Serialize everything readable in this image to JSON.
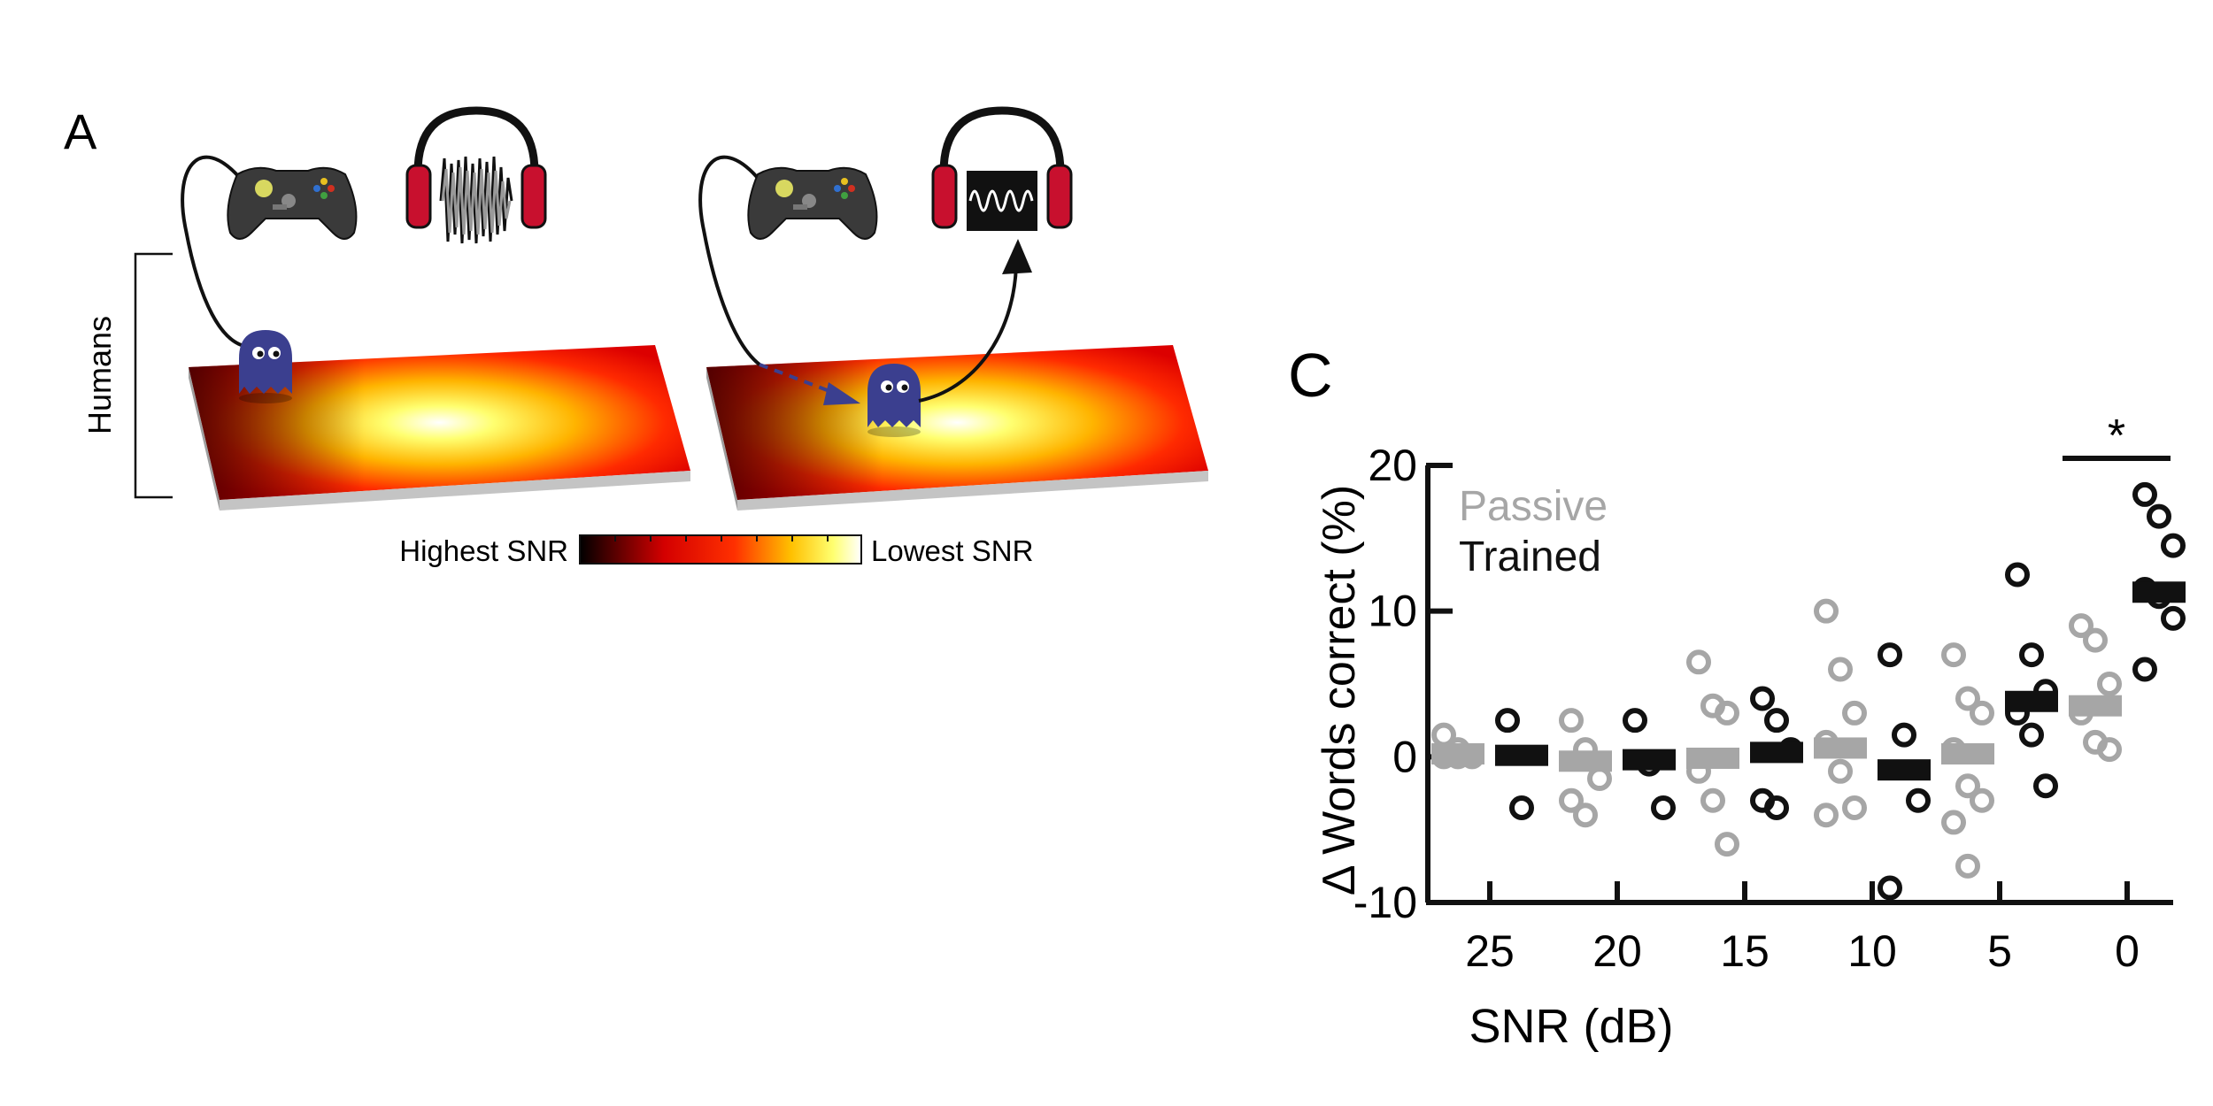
{
  "panel_a": {
    "label": "A",
    "group_label": "Humans",
    "colorbar": {
      "left_label": "Highest SNR",
      "right_label": "Lowest SNR"
    }
  },
  "panel_c": {
    "label": "C",
    "significance": "*"
  },
  "colors": {
    "passive": "#a6a6a6",
    "trained": "#111111",
    "headphone_cup": "#c8102e",
    "character": "#3b3f8f",
    "map_edge": "#c0c0c0"
  },
  "chart_data": {
    "type": "scatter",
    "title": "",
    "xlabel": "SNR (dB)",
    "ylabel": "Δ Words correct (%)",
    "categories": [
      "25",
      "20",
      "15",
      "10",
      "5",
      "0"
    ],
    "ylim": [
      -10,
      20
    ],
    "yticks": [
      -10,
      0,
      10,
      20
    ],
    "legend_position": "top-left",
    "series": [
      {
        "name": "Passive",
        "means": [
          0.2,
          -0.3,
          -0.1,
          0.6,
          0.2,
          3.5
        ],
        "points": [
          [
            1.5,
            0.5,
            0,
            0,
            0
          ],
          [
            2.5,
            0.5,
            -1.5,
            -3,
            -4
          ],
          [
            6.5,
            3.5,
            3,
            -1,
            -3,
            -6
          ],
          [
            10,
            6,
            3,
            1,
            -1,
            -3.5,
            -4
          ],
          [
            7,
            4,
            3,
            0.5,
            -2,
            -3,
            -4.5,
            -7.5
          ],
          [
            9,
            8,
            5,
            3,
            1,
            0.5
          ]
        ]
      },
      {
        "name": "Trained",
        "means": [
          0.1,
          -0.2,
          0.3,
          -0.9,
          3.8,
          11.3
        ],
        "points": [
          [
            2.5,
            -3.5
          ],
          [
            2.5,
            -0.5,
            -3.5
          ],
          [
            4,
            2.5,
            0.5,
            -3,
            -3.5
          ],
          [
            7,
            1.5,
            -3,
            -9
          ],
          [
            12.5,
            7,
            4.5,
            3,
            1.5,
            -2
          ],
          [
            18,
            16.5,
            14.5,
            11.5,
            11,
            9.5,
            6
          ]
        ]
      }
    ]
  }
}
